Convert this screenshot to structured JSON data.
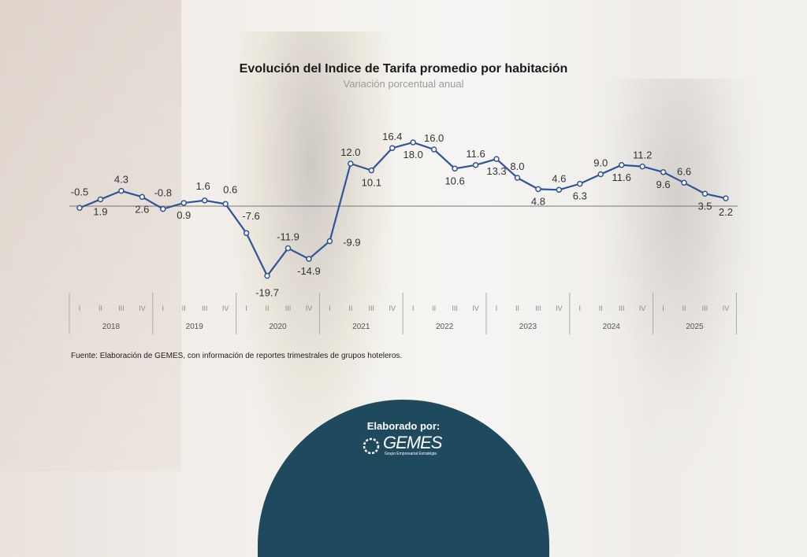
{
  "chart_data": {
    "type": "line",
    "title": "Evolución del Indice de Tarifa promedio por habitación",
    "subtitle": "Variación porcentual anual",
    "years": [
      "2018",
      "2019",
      "2020",
      "2021",
      "2022",
      "2023",
      "2024",
      "2025"
    ],
    "quarters": [
      "I",
      "II",
      "III",
      "IV"
    ],
    "values": [
      -0.5,
      1.9,
      4.3,
      2.6,
      -0.8,
      0.9,
      1.6,
      0.6,
      -7.6,
      -19.7,
      -11.9,
      -14.9,
      -9.9,
      12.0,
      10.1,
      16.4,
      18.0,
      16.0,
      10.6,
      11.6,
      13.3,
      8.0,
      4.8,
      4.6,
      6.3,
      9.0,
      11.6,
      11.2,
      9.6,
      6.6,
      3.5,
      2.2
    ],
    "labels": [
      "-0.5",
      "1.9",
      "4.3",
      "2.6",
      "-0.8",
      "0.9",
      "1.6",
      "0.6",
      "-7.6",
      "-19.7",
      "-11.9",
      "-14.9",
      "-9.9",
      "12.0",
      "10.1",
      "16.4",
      "18.0",
      "16.0",
      "10.6",
      "11.6",
      "13.3",
      "8.0",
      "4.8",
      "4.6",
      "6.3",
      "9.0",
      "11.6",
      "11.2",
      "9.6",
      "6.6",
      "3.5",
      "2.2"
    ],
    "line_color": "#2f5597",
    "grid": false,
    "legend": "none"
  },
  "source": "Fuente: Elaboración de GEMES, con información de reportes trimestrales de grupos hoteleros.",
  "footer": {
    "label": "Elaborado por:",
    "logo": "GEMES",
    "logo_sub": "Grupo Empresarial Estratégia",
    "color": "#1f4a5e"
  }
}
